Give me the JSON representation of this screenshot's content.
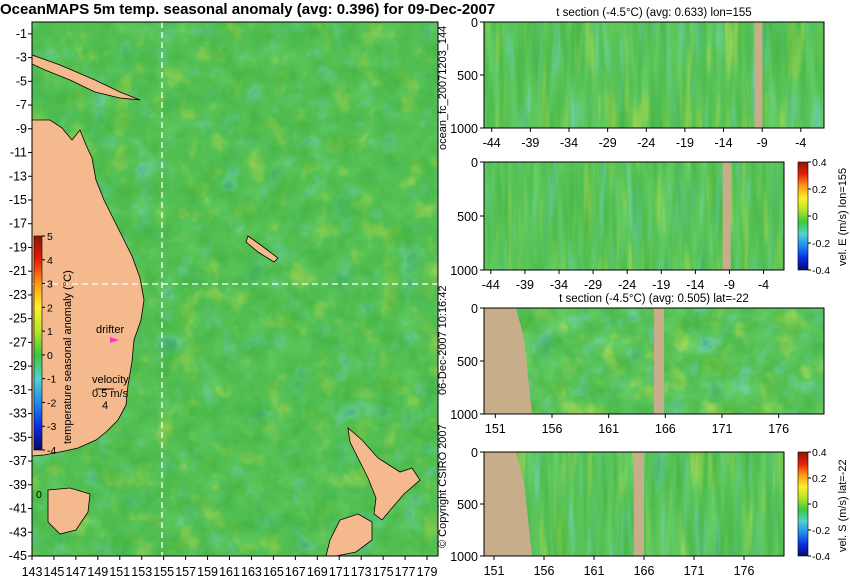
{
  "map": {
    "title": "OceanMAPS 5m temp. seasonal anomaly (avg: 0.396) for 09-Dec-2007",
    "colorbar_label": "temperature seasonal anomaly (°C)",
    "drifter_label": "drifter",
    "velocity_label": "velocity",
    "velocity_scale": "0.5 m/s",
    "velocity_value": "4",
    "small_label": "0"
  },
  "colors": {
    "land": "#f4b98d",
    "section_land": "#c8ad8a",
    "ocean_base": "#3fb13f",
    "crosshair": "#ffffff",
    "drifter": "#ff33cc",
    "colormap": [
      "#08086e",
      "#0a2ce6",
      "#1e8cf0",
      "#50d2d2",
      "#3cc83c",
      "#b4e628",
      "#fff028",
      "#ff9a14",
      "#e61e0a",
      "#8c1405"
    ]
  },
  "side_labels": {
    "run_name": "ocean_fc_20071203_144",
    "run_time": "06-Dec-2007 10:16:42",
    "copyright": "© Copyright CSIRO 2007"
  },
  "sections": [
    {
      "title": "t section (-4.5°C) (avg: 0.633) lon=155",
      "colorbar_label": ""
    },
    {
      "title": "",
      "colorbar_label": "vel. E (m/s) lon=155"
    },
    {
      "title": "t section (-4.5°C) (avg: 0.505) lat=-22",
      "colorbar_label": ""
    },
    {
      "title": "",
      "colorbar_label": "vel. S (m/s) lat=-22"
    }
  ],
  "chart_data": [
    {
      "type": "heatmap",
      "title": "OceanMAPS 5m temp. seasonal anomaly (avg: 0.396) for 09-Dec-2007",
      "x_ticks": [
        "143",
        "145",
        "147",
        "149",
        "151",
        "153",
        "155",
        "157",
        "159",
        "161",
        "163",
        "165",
        "167",
        "169",
        "171",
        "173",
        "175",
        "177",
        "179"
      ],
      "y_ticks": [
        "-1",
        "-3",
        "-5",
        "-7",
        "-9",
        "-11",
        "-13",
        "-15",
        "-17",
        "-19",
        "-21",
        "-23",
        "-25",
        "-27",
        "-29",
        "-31",
        "-33",
        "-35",
        "-37",
        "-39",
        "-41",
        "-43",
        "-45"
      ],
      "xlim": [
        143,
        180
      ],
      "ylim": [
        -45,
        0
      ],
      "colorbar": {
        "ticks": [
          "5",
          "4",
          "3",
          "2",
          "1",
          "0",
          "-1",
          "-2",
          "-3",
          "-4"
        ],
        "range": [
          -4,
          5
        ]
      },
      "crosshair": {
        "lon": 155,
        "lat": -22
      },
      "average": 0.396
    },
    {
      "type": "heatmap",
      "title": "t section (-4.5°C) (avg: 0.633) lon=155",
      "x_ticks": [
        "-44",
        "-39",
        "-34",
        "-29",
        "-24",
        "-19",
        "-14",
        "-9",
        "-4"
      ],
      "y_ticks": [
        "0",
        "500",
        "1000"
      ],
      "xlim": [
        -45,
        -1
      ],
      "ylim": [
        1000,
        0
      ],
      "average": 0.633
    },
    {
      "type": "heatmap",
      "title": "vel. E (m/s) lon=155",
      "x_ticks": [
        "-44",
        "-39",
        "-34",
        "-29",
        "-24",
        "-19",
        "-14",
        "-9",
        "-4"
      ],
      "y_ticks": [
        "0",
        "500",
        "1000"
      ],
      "xlim": [
        -45,
        -1
      ],
      "ylim": [
        1000,
        0
      ],
      "colorbar": {
        "ticks": [
          "0.4",
          "0.2",
          "0",
          "-0.2",
          "-0.4"
        ],
        "range": [
          -0.4,
          0.4
        ]
      }
    },
    {
      "type": "heatmap",
      "title": "t section (-4.5°C) (avg: 0.505) lat=-22",
      "x_ticks": [
        "151",
        "156",
        "161",
        "166",
        "171",
        "176"
      ],
      "y_ticks": [
        "0",
        "500",
        "1000"
      ],
      "xlim": [
        150,
        180
      ],
      "ylim": [
        1000,
        0
      ],
      "average": 0.505
    },
    {
      "type": "heatmap",
      "title": "vel. S (m/s) lat=-22",
      "x_ticks": [
        "151",
        "156",
        "161",
        "166",
        "171",
        "176"
      ],
      "y_ticks": [
        "0",
        "500",
        "1000"
      ],
      "xlim": [
        150,
        180
      ],
      "ylim": [
        1000,
        0
      ],
      "colorbar": {
        "ticks": [
          "0.4",
          "0.2",
          "0",
          "-0.2",
          "-0.4"
        ],
        "range": [
          -0.4,
          0.4
        ]
      }
    }
  ]
}
